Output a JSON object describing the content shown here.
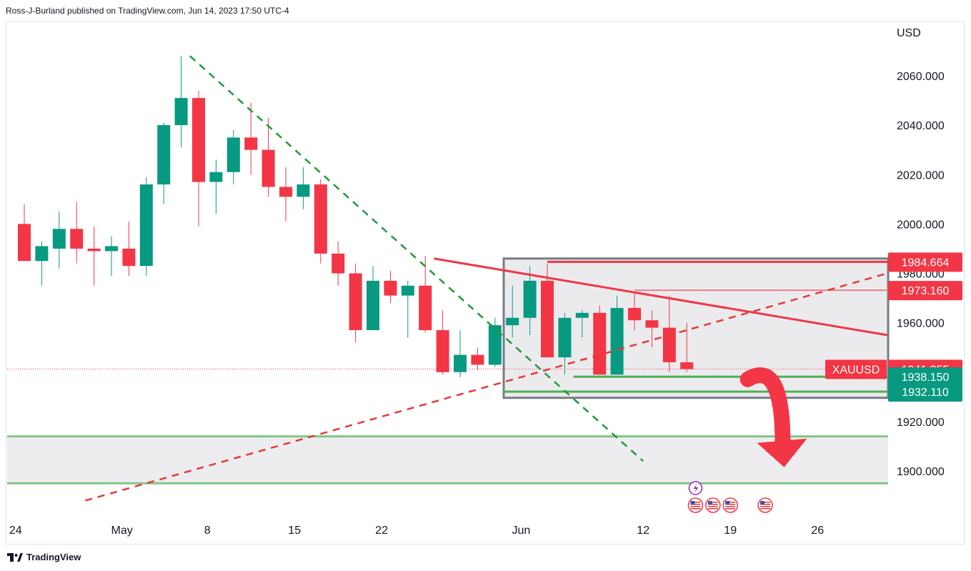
{
  "header": {
    "published_text": "Ross-J-Burland published on TradingView.com, Jun 14, 2023 17:50 UTC-4"
  },
  "footer": {
    "brand": "TradingView"
  },
  "colors": {
    "bull": "#089981",
    "bear": "#f23645",
    "support": "#4caf50",
    "support_zone_fill": "#ebebee",
    "support_line": "#81c784",
    "box_border": "#787b86",
    "resistance": "#f23645"
  },
  "chart_data": {
    "type": "candlestick",
    "symbol": "XAUUSD",
    "currency_label": "USD",
    "ylim": [
      1886,
      2074
    ],
    "y_ticks": [
      "2060.000",
      "2040.000",
      "2020.000",
      "2000.000",
      "1980.000",
      "1960.000",
      "1920.000",
      "1900.000"
    ],
    "x_ticks": [
      {
        "label": "24",
        "index": -0.5
      },
      {
        "label": "May",
        "index": 5.6
      },
      {
        "label": "8",
        "index": 10.5
      },
      {
        "label": "15",
        "index": 15.5
      },
      {
        "label": "22",
        "index": 20.5
      },
      {
        "label": "Jun",
        "index": 28.5
      },
      {
        "label": "12",
        "index": 35.5
      },
      {
        "label": "19",
        "index": 40.5
      },
      {
        "label": "26",
        "index": 45.5
      }
    ],
    "candles": [
      {
        "o": 2000,
        "h": 2008,
        "l": 1985,
        "c": 1985
      },
      {
        "o": 1985,
        "h": 1993,
        "l": 1975,
        "c": 1991
      },
      {
        "o": 1990,
        "h": 2005,
        "l": 1982,
        "c": 1998
      },
      {
        "o": 1998,
        "h": 2009,
        "l": 1984,
        "c": 1990
      },
      {
        "o": 1990,
        "h": 1999,
        "l": 1975,
        "c": 1989
      },
      {
        "o": 1989,
        "h": 1995,
        "l": 1979,
        "c": 1991
      },
      {
        "o": 1990,
        "h": 2001,
        "l": 1979,
        "c": 1983
      },
      {
        "o": 1983,
        "h": 2019,
        "l": 1979,
        "c": 2016
      },
      {
        "o": 2016,
        "h": 2041,
        "l": 2008,
        "c": 2040
      },
      {
        "o": 2040,
        "h": 2068,
        "l": 2031,
        "c": 2051
      },
      {
        "o": 2051,
        "h": 2054,
        "l": 1999,
        "c": 2017
      },
      {
        "o": 2017,
        "h": 2026,
        "l": 2004,
        "c": 2021
      },
      {
        "o": 2021,
        "h": 2038,
        "l": 2016,
        "c": 2035
      },
      {
        "o": 2035,
        "h": 2049,
        "l": 2020,
        "c": 2030
      },
      {
        "o": 2030,
        "h": 2043,
        "l": 2011,
        "c": 2015
      },
      {
        "o": 2015,
        "h": 2023,
        "l": 2001,
        "c": 2011
      },
      {
        "o": 2011,
        "h": 2023,
        "l": 2006,
        "c": 2016
      },
      {
        "o": 2016,
        "h": 2018,
        "l": 1984,
        "c": 1988
      },
      {
        "o": 1988,
        "h": 1993,
        "l": 1975,
        "c": 1980
      },
      {
        "o": 1980,
        "h": 1984,
        "l": 1952,
        "c": 1957
      },
      {
        "o": 1957,
        "h": 1983,
        "l": 1957,
        "c": 1977
      },
      {
        "o": 1977,
        "h": 1981,
        "l": 1968,
        "c": 1971
      },
      {
        "o": 1971,
        "h": 1977,
        "l": 1954,
        "c": 1975
      },
      {
        "o": 1975,
        "h": 1987,
        "l": 1956,
        "c": 1957
      },
      {
        "o": 1957,
        "h": 1965,
        "l": 1939,
        "c": 1940
      },
      {
        "o": 1940,
        "h": 1957,
        "l": 1938,
        "c": 1947
      },
      {
        "o": 1947,
        "h": 1950,
        "l": 1941,
        "c": 1943
      },
      {
        "o": 1943,
        "h": 1962,
        "l": 1942,
        "c": 1959
      },
      {
        "o": 1959,
        "h": 1975,
        "l": 1954,
        "c": 1962
      },
      {
        "o": 1962,
        "h": 1983,
        "l": 1955,
        "c": 1977
      },
      {
        "o": 1977,
        "h": 1984,
        "l": 1946,
        "c": 1946
      },
      {
        "o": 1946,
        "h": 1964,
        "l": 1939,
        "c": 1962
      },
      {
        "o": 1962,
        "h": 1965,
        "l": 1954,
        "c": 1964
      },
      {
        "o": 1964,
        "h": 1967,
        "l": 1939,
        "c": 1939
      },
      {
        "o": 1939,
        "h": 1971,
        "l": 1939,
        "c": 1966
      },
      {
        "o": 1966,
        "h": 1972,
        "l": 1957,
        "c": 1961
      },
      {
        "o": 1961,
        "h": 1965,
        "l": 1950,
        "c": 1958
      },
      {
        "o": 1958,
        "h": 1971,
        "l": 1940,
        "c": 1944
      },
      {
        "o": 1944,
        "h": 1960,
        "l": 1940,
        "c": 1941.255
      }
    ],
    "price_labels": [
      {
        "text": "1984.664",
        "value": 1984.664,
        "color": "#f23645"
      },
      {
        "text": "1973.160",
        "value": 1973.16,
        "color": "#f23645"
      },
      {
        "text": "1941.255",
        "value": 1941.255,
        "color": "#f23645",
        "symbol": "XAUUSD"
      },
      {
        "text": "1938.150",
        "value": 1938.15,
        "color": "#089981"
      },
      {
        "text": "1932.110",
        "value": 1932.11,
        "color": "#089981"
      }
    ],
    "grid": false,
    "annotations": {
      "consolidation_box": {
        "x0": 27.5,
        "x1": 50.2,
        "y0": 1929.6,
        "y1": 1986
      },
      "support_zone": {
        "x0": -1,
        "x1": 50.2,
        "y0": 1895,
        "y1": 1914
      },
      "resistance_line_top": {
        "x0": 30,
        "x1": 50.2,
        "y": 1984.664
      },
      "resistance_line_mid": {
        "x0": 35,
        "x1": 50.2,
        "y": 1973.16
      },
      "support_line_a": {
        "x0": 31.5,
        "x1": 50.2,
        "y": 1938.15
      },
      "support_line_b": {
        "x0": 27.5,
        "x1": 50.2,
        "y": 1932.11
      },
      "downtrend_dashed": {
        "x0": 9.5,
        "y0": 2068,
        "x1": 35.5,
        "y1": 1904
      },
      "uptrend_dashed": {
        "x0": 3.5,
        "y0": 1888,
        "x1": 49.5,
        "y1": 1980
      },
      "descending_resistance": {
        "x0": 23.5,
        "y0": 1986,
        "x1": 49.5,
        "y1": 1955
      },
      "down_arrow": {
        "from_x": 41.5,
        "from_y": 1940,
        "to_x": 43.5,
        "to_y": 1905
      }
    },
    "event_icons": {
      "lightning": {
        "x": 38.5
      },
      "flags": [
        38.5,
        39.5,
        40.5,
        42.5
      ]
    }
  }
}
